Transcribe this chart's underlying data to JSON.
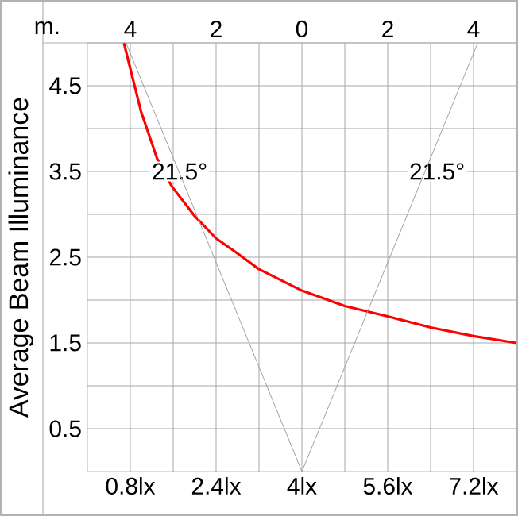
{
  "chart_data": {
    "type": "line",
    "ylabel": "Average Beam Illuminance",
    "x2label": "m.",
    "xlim": [
      0,
      8
    ],
    "ylim": [
      0,
      5
    ],
    "x2lim": [
      -5,
      5
    ],
    "xticks": [
      {
        "value": 0.8,
        "label": "0.8lx"
      },
      {
        "value": 1.6,
        "label": null
      },
      {
        "value": 2.4,
        "label": "2.4lx"
      },
      {
        "value": 3.2,
        "label": null
      },
      {
        "value": 4,
        "label": "4lx"
      },
      {
        "value": 4.8,
        "label": null
      },
      {
        "value": 5.6,
        "label": "5.6lx"
      },
      {
        "value": 6.4,
        "label": null
      },
      {
        "value": 7.2,
        "label": "7.2lx"
      }
    ],
    "x2ticks": [
      {
        "value": -4,
        "label": "4"
      },
      {
        "value": -2,
        "label": "2"
      },
      {
        "value": 0,
        "label": "0"
      },
      {
        "value": 2,
        "label": "2"
      },
      {
        "value": 4,
        "label": "4"
      }
    ],
    "yticks": [
      0.5,
      {
        "value": 1,
        "label": null
      },
      1.5,
      {
        "value": 2,
        "label": null
      },
      2.5,
      {
        "value": 3,
        "label": null
      },
      3.5,
      {
        "value": 4,
        "label": null
      },
      4.5
    ],
    "grid": true,
    "series": [
      {
        "color": "#ff0000",
        "x": [
          0.68,
          0.8,
          1.0,
          1.3,
          1.57,
          2.0,
          2.4,
          2.81,
          3.2,
          4.0,
          4.8,
          5.6,
          6.4,
          7.2,
          8.0
        ],
        "values": [
          5.0,
          4.7,
          4.2,
          3.65,
          3.33,
          2.98,
          2.72,
          2.54,
          2.36,
          2.11,
          1.93,
          1.81,
          1.68,
          1.58,
          1.5
        ]
      },
      {
        "axis": "x2",
        "color": "#a0a0a0",
        "x": [
          0,
          -4.1
        ],
        "values": [
          0,
          5
        ]
      },
      {
        "axis": "x2",
        "color": "#a0a0a0",
        "x": [
          0,
          4.1
        ],
        "values": [
          0,
          5
        ]
      }
    ],
    "annotations": [
      {
        "text": "21.5°",
        "x": 1.72,
        "y": 3.5
      },
      {
        "text": "21.5°",
        "x": 6.52,
        "y": 3.5
      }
    ]
  }
}
